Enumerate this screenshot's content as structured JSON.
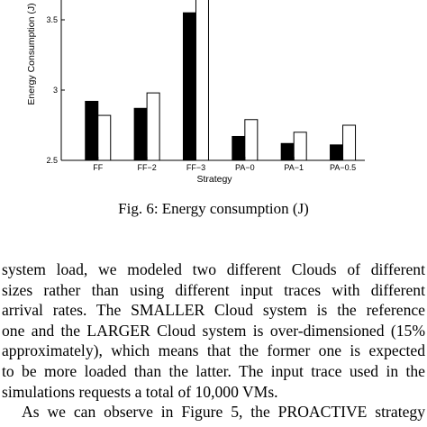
{
  "chart_data": {
    "type": "bar",
    "categories": [
      "FF",
      "FF−2",
      "FF−3",
      "PA−0",
      "PA−1",
      "PA−0.5"
    ],
    "series": [
      {
        "color": "#000000",
        "values": [
          2.92,
          2.87,
          3.55,
          2.67,
          2.62,
          2.61
        ]
      },
      {
        "color": "#ffffff",
        "values": [
          2.82,
          2.98,
          3.7,
          2.79,
          2.7,
          2.75
        ]
      }
    ],
    "xlabel": "Strategy",
    "ylabel": "Energy Consumption (J)",
    "ylim": [
      2.5,
      3.7
    ],
    "yticks": [
      "2.5",
      "3",
      "3.5"
    ],
    "grid": false
  },
  "caption": "Fig. 6: Energy consumption (J)",
  "body_lines": [
    "system load, we modeled two different Clouds of different",
    "sizes rather than using different input traces with different",
    "arrival rates. The SMALLER Cloud system is the reference",
    "one and the LARGER Cloud system is over-dimensioned (15%",
    "approximately), which means that the former one is expected",
    "to be more loaded than the latter. The input trace used in the",
    "simulations requests a total of 10,000 VMs.",
    "As we can observe in Figure 5, the PROACTIVE strategy"
  ]
}
